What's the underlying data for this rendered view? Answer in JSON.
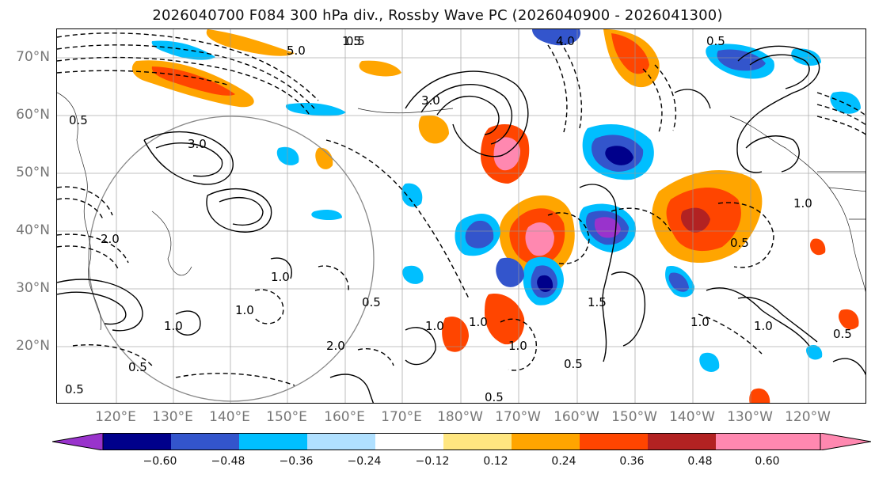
{
  "title": "2026040700 F084 300 hPa div., Rossby Wave PC (2026040900 - 2026041300)",
  "map": {
    "lat_labels": [
      "70°N",
      "60°N",
      "50°N",
      "40°N",
      "30°N",
      "20°N"
    ],
    "lon_labels": [
      "120°E",
      "130°E",
      "140°E",
      "150°E",
      "160°E",
      "170°E",
      "180°W",
      "170°W",
      "160°W",
      "150°W",
      "140°W",
      "130°W",
      "120°W"
    ],
    "contour_labels": [
      "5.0",
      "1.5",
      "3.0",
      "0.5",
      "1.0",
      "2.0",
      "4.0",
      "0.5",
      "1.0",
      "3.0",
      "0.5",
      "1.0",
      "2.0",
      "1.0",
      "0.5",
      "1.5",
      "0.5",
      "1.0",
      "1.0",
      "0.5",
      "0.5",
      "1.0",
      "1.0",
      "0.5",
      "1.0",
      "0.5",
      "0.5"
    ]
  },
  "colorbar": {
    "tick_labels": [
      "−0.60",
      "−0.48",
      "−0.36",
      "−0.24",
      "−0.12",
      "0.12",
      "0.24",
      "0.36",
      "0.48",
      "0.60"
    ],
    "colors": [
      "#9933cc",
      "#00008b",
      "#3355cc",
      "#00bfff",
      "#b0e0ff",
      "#ffffff",
      "#ffe680",
      "#ffa500",
      "#ff4500",
      "#b22222",
      "#ff88b0"
    ]
  }
}
